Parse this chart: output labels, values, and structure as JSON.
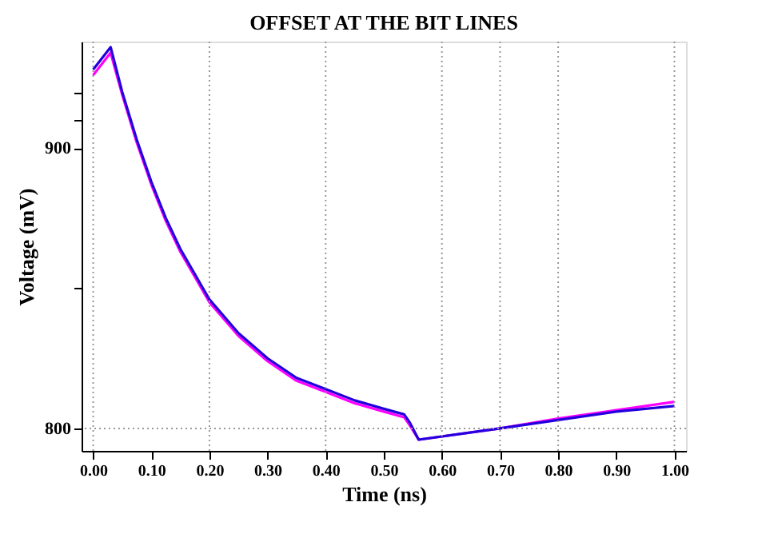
{
  "chart_data": {
    "type": "line",
    "title": "OFFSET AT THE BIT LINES",
    "xlabel": "Time (ns)",
    "ylabel": "Voltage (mV)",
    "x": [
      0,
      0.03,
      0.05,
      0.075,
      0.1,
      0.125,
      0.15,
      0.175,
      0.2,
      0.25,
      0.3,
      0.35,
      0.4,
      0.45,
      0.5,
      0.535,
      0.545,
      0.56,
      0.7,
      0.8,
      0.9,
      1.0
    ],
    "series": [
      {
        "color": "#ff00ff",
        "values": [
          926,
          934,
          919,
          902,
          887,
          874,
          863,
          854,
          845,
          833,
          824,
          817,
          813,
          809,
          806,
          804,
          801,
          796,
          800,
          803.5,
          806.5,
          809.5
        ]
      },
      {
        "color": "#2200dd",
        "values": [
          928,
          936,
          920,
          903,
          888,
          875,
          864,
          855,
          846,
          834,
          825,
          818,
          814,
          810,
          807,
          805,
          802,
          796,
          800,
          803,
          806,
          808
        ]
      }
    ],
    "xlim": [
      -0.02,
      1.02
    ],
    "ylim": [
      792,
      938
    ],
    "xticks": [
      {
        "value": 0,
        "label": "0.00"
      },
      {
        "value": 0.1,
        "label": "0.10"
      },
      {
        "value": 0.2,
        "label": "0.20"
      },
      {
        "value": 0.3,
        "label": "0.30"
      },
      {
        "value": 0.4,
        "label": "0.40"
      },
      {
        "value": 0.5,
        "label": "0.50"
      },
      {
        "value": 0.6,
        "label": "0.60"
      },
      {
        "value": 0.7,
        "label": "0.70"
      },
      {
        "value": 0.8,
        "label": "0.80"
      },
      {
        "value": 0.9,
        "label": "0.90"
      },
      {
        "value": 1.0,
        "label": "1.00"
      }
    ],
    "yticks": [
      800,
      {
        "value": 850,
        "label": null
      },
      900,
      {
        "value": 910,
        "label": null
      },
      {
        "value": 920,
        "label": null
      }
    ],
    "ref_lines": [
      {
        "axis": "x",
        "value": 0,
        "color": "#999999",
        "line_style": "dotted"
      },
      {
        "axis": "x",
        "value": 0.2,
        "color": "#999999",
        "line_style": "dotted"
      },
      {
        "axis": "x",
        "value": 0.4,
        "color": "#999999",
        "line_style": "dotted"
      },
      {
        "axis": "x",
        "value": 0.6,
        "color": "#999999",
        "line_style": "dotted"
      },
      {
        "axis": "x",
        "value": 0.7,
        "color": "#999999",
        "line_style": "dotted"
      },
      {
        "axis": "x",
        "value": 0.8,
        "color": "#999999",
        "line_style": "dotted"
      },
      {
        "axis": "x",
        "value": 1.0,
        "color": "#999999",
        "line_style": "dotted"
      },
      {
        "axis": "y",
        "value": 800,
        "color": "#999999",
        "line_style": "dotted"
      }
    ],
    "grid": false,
    "marker": "none",
    "line_style": "solid"
  }
}
